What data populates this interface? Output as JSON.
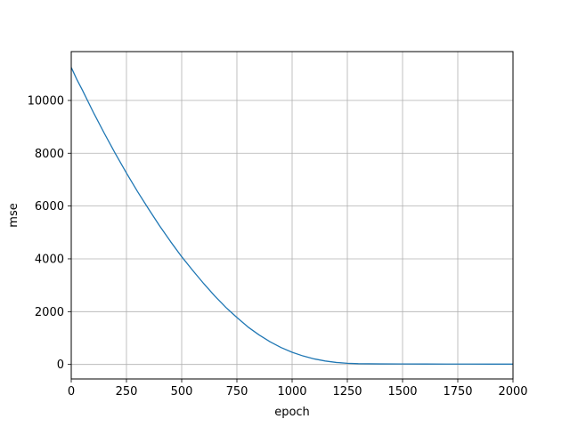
{
  "chart_data": {
    "type": "line",
    "title": "",
    "xlabel": "epoch",
    "ylabel": "mse",
    "xlim": [
      0,
      2000
    ],
    "ylim": [
      -550,
      11850
    ],
    "xticks": [
      0,
      250,
      500,
      750,
      1000,
      1250,
      1500,
      1750,
      2000
    ],
    "xtick_labels": [
      "0",
      "250",
      "500",
      "750",
      "1000",
      "1250",
      "1500",
      "1750",
      "2000"
    ],
    "yticks": [
      0,
      2000,
      4000,
      6000,
      8000,
      10000
    ],
    "ytick_labels": [
      "0",
      "2000",
      "4000",
      "6000",
      "8000",
      "10000"
    ],
    "grid": true,
    "legend": "none",
    "series": [
      {
        "color": "#1f77b4",
        "x": [
          0,
          25,
          50,
          100,
          150,
          200,
          250,
          300,
          350,
          400,
          450,
          500,
          550,
          600,
          650,
          700,
          750,
          800,
          850,
          900,
          950,
          1000,
          1050,
          1100,
          1150,
          1200,
          1250,
          1300,
          1350,
          1400,
          1500,
          1600,
          1700,
          1800,
          1900,
          2000
        ],
        "values": [
          11250,
          10800,
          10400,
          9550,
          8750,
          7980,
          7250,
          6550,
          5890,
          5250,
          4650,
          4080,
          3560,
          3060,
          2590,
          2160,
          1780,
          1420,
          1120,
          860,
          640,
          460,
          320,
          210,
          130,
          75,
          45,
          30,
          25,
          20,
          18,
          16,
          15,
          14,
          13,
          12
        ]
      }
    ]
  }
}
